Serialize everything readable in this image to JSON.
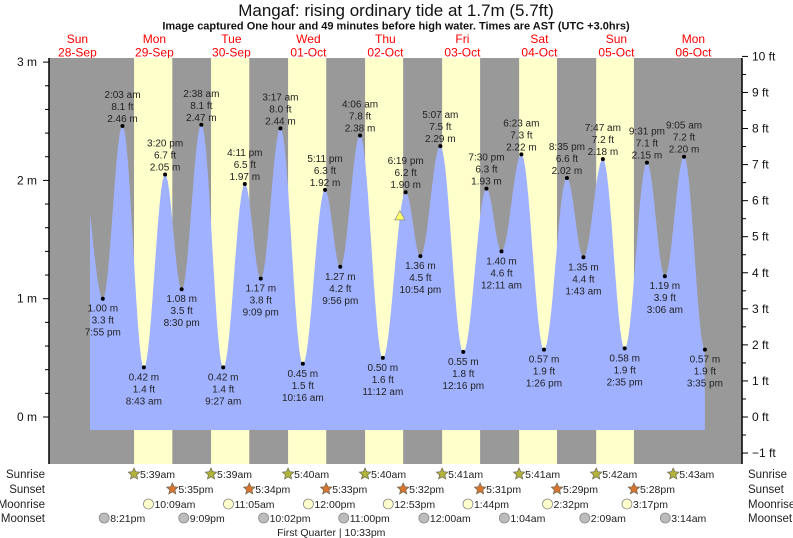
{
  "title": "Mangaf: rising  ordinary tide at 1.7m (5.7ft)",
  "subtitle": "Image captured One hour and 49 minutes before high water. Times are AST (UTC +3.0hrs)",
  "current": {
    "height_m": 1.7,
    "date": "02-Oct",
    "time": "4:30 pm"
  },
  "colors": {
    "night": "#999999",
    "day": "#ffffcc",
    "water": "#a0b2ff",
    "day_label": "#ff0000",
    "sunrise": "#b3b33c",
    "sunset": "#d8752e",
    "moonrise": "#ffffcc",
    "moonset": "#bcbcbc",
    "marker": "#ffff66"
  },
  "chart_data": {
    "type": "area",
    "title": "Mangaf: rising  ordinary tide at 1.7m (5.7ft)",
    "ylim_m": [
      -0.11,
      3.05
    ],
    "ylim_ft": [
      -1,
      10
    ],
    "left_ticks": [
      "3 m",
      "2 m",
      "1 m",
      "0 m"
    ],
    "left_tick_values": [
      3,
      2,
      1,
      0
    ],
    "right_ticks": [
      "10 ft",
      "9 ft",
      "8 ft",
      "7 ft",
      "6 ft",
      "5 ft",
      "4 ft",
      "3 ft",
      "2 ft",
      "1 ft",
      "0 ft",
      "−1 ft"
    ],
    "right_tick_values": [
      10,
      9,
      8,
      7,
      6,
      5,
      4,
      3,
      2,
      1,
      0,
      -1
    ]
  },
  "days": [
    {
      "dow": "Sun",
      "date": "28-Sep"
    },
    {
      "dow": "Mon",
      "date": "29-Sep"
    },
    {
      "dow": "Tue",
      "date": "30-Sep"
    },
    {
      "dow": "Wed",
      "date": "01-Oct"
    },
    {
      "dow": "Thu",
      "date": "02-Oct"
    },
    {
      "dow": "Fri",
      "date": "03-Oct"
    },
    {
      "dow": "Sat",
      "date": "04-Oct"
    },
    {
      "dow": "Sun",
      "date": "05-Oct"
    },
    {
      "dow": "Mon",
      "date": "06-Oct"
    }
  ],
  "tides": [
    {
      "type": "low",
      "date": "28-Sep",
      "time": "7:55 pm",
      "m": "1.00 m",
      "ft": "3.3 ft",
      "value": 1.0
    },
    {
      "type": "high",
      "date": "29-Sep",
      "time": "2:03 am",
      "m": "2.46 m",
      "ft": "8.1 ft",
      "value": 2.46
    },
    {
      "type": "low",
      "date": "29-Sep",
      "time": "8:43 am",
      "m": "0.42 m",
      "ft": "1.4 ft",
      "value": 0.42
    },
    {
      "type": "high",
      "date": "29-Sep",
      "time": "3:20 pm",
      "m": "2.05 m",
      "ft": "6.7 ft",
      "value": 2.05
    },
    {
      "type": "low",
      "date": "29-Sep",
      "time": "8:30 pm",
      "m": "1.08 m",
      "ft": "3.5 ft",
      "value": 1.08
    },
    {
      "type": "high",
      "date": "30-Sep",
      "time": "2:38 am",
      "m": "2.47 m",
      "ft": "8.1 ft",
      "value": 2.47
    },
    {
      "type": "low",
      "date": "30-Sep",
      "time": "9:27 am",
      "m": "0.42 m",
      "ft": "1.4 ft",
      "value": 0.42
    },
    {
      "type": "high",
      "date": "30-Sep",
      "time": "4:11 pm",
      "m": "1.97 m",
      "ft": "6.5 ft",
      "value": 1.97
    },
    {
      "type": "low",
      "date": "30-Sep",
      "time": "9:09 pm",
      "m": "1.17 m",
      "ft": "3.8 ft",
      "value": 1.17
    },
    {
      "type": "high",
      "date": "01-Oct",
      "time": "3:17 am",
      "m": "2.44 m",
      "ft": "8.0 ft",
      "value": 2.44
    },
    {
      "type": "low",
      "date": "01-Oct",
      "time": "10:16 am",
      "m": "0.45 m",
      "ft": "1.5 ft",
      "value": 0.45
    },
    {
      "type": "high",
      "date": "01-Oct",
      "time": "5:11 pm",
      "m": "1.92 m",
      "ft": "6.3 ft",
      "value": 1.92
    },
    {
      "type": "low",
      "date": "01-Oct",
      "time": "9:56 pm",
      "m": "1.27 m",
      "ft": "4.2 ft",
      "value": 1.27
    },
    {
      "type": "high",
      "date": "02-Oct",
      "time": "4:06 am",
      "m": "2.38 m",
      "ft": "7.8 ft",
      "value": 2.38
    },
    {
      "type": "low",
      "date": "02-Oct",
      "time": "11:12 am",
      "m": "0.50 m",
      "ft": "1.6 ft",
      "value": 0.5
    },
    {
      "type": "high",
      "date": "02-Oct",
      "time": "6:19 pm",
      "m": "1.90 m",
      "ft": "6.2 ft",
      "value": 1.9
    },
    {
      "type": "low",
      "date": "02-Oct",
      "time": "10:54 pm",
      "m": "1.36 m",
      "ft": "4.5 ft",
      "value": 1.36
    },
    {
      "type": "high",
      "date": "03-Oct",
      "time": "5:07 am",
      "m": "2.29 m",
      "ft": "7.5 ft",
      "value": 2.29
    },
    {
      "type": "low",
      "date": "03-Oct",
      "time": "12:16 pm",
      "m": "0.55 m",
      "ft": "1.8 ft",
      "value": 0.55
    },
    {
      "type": "high",
      "date": "03-Oct",
      "time": "7:30 pm",
      "m": "1.93 m",
      "ft": "6.3 ft",
      "value": 1.93
    },
    {
      "type": "low",
      "date": "04-Oct",
      "time": "12:11 am",
      "m": "1.40 m",
      "ft": "4.6 ft",
      "value": 1.4
    },
    {
      "type": "high",
      "date": "04-Oct",
      "time": "6:23 am",
      "m": "2.22 m",
      "ft": "7.3 ft",
      "value": 2.22
    },
    {
      "type": "low",
      "date": "04-Oct",
      "time": "1:26 pm",
      "m": "0.57 m",
      "ft": "1.9 ft",
      "value": 0.57
    },
    {
      "type": "high",
      "date": "04-Oct",
      "time": "8:35 pm",
      "m": "2.02 m",
      "ft": "6.6 ft",
      "value": 2.02
    },
    {
      "type": "low",
      "date": "05-Oct",
      "time": "1:43 am",
      "m": "1.35 m",
      "ft": "4.4 ft",
      "value": 1.35
    },
    {
      "type": "high",
      "date": "05-Oct",
      "time": "7:47 am",
      "m": "2.18 m",
      "ft": "7.2 ft",
      "value": 2.18
    },
    {
      "type": "low",
      "date": "05-Oct",
      "time": "2:35 pm",
      "m": "0.58 m",
      "ft": "1.9 ft",
      "value": 0.58
    },
    {
      "type": "high",
      "date": "05-Oct",
      "time": "9:31 pm",
      "m": "2.15 m",
      "ft": "7.1 ft",
      "value": 2.15
    },
    {
      "type": "low",
      "date": "06-Oct",
      "time": "3:06 am",
      "m": "1.19 m",
      "ft": "3.9 ft",
      "value": 1.19
    },
    {
      "type": "high",
      "date": "06-Oct",
      "time": "9:05 am",
      "m": "2.20 m",
      "ft": "7.2 ft",
      "value": 2.2
    },
    {
      "type": "low",
      "date": "06-Oct",
      "time": "3:35 pm",
      "m": "0.57 m",
      "ft": "1.9 ft",
      "value": 0.57
    }
  ],
  "rows": {
    "sunrise": {
      "label": "Sunrise",
      "events": [
        {
          "date": "29-Sep",
          "time": "5:39am"
        },
        {
          "date": "30-Sep",
          "time": "5:39am"
        },
        {
          "date": "01-Oct",
          "time": "5:40am"
        },
        {
          "date": "02-Oct",
          "time": "5:40am"
        },
        {
          "date": "03-Oct",
          "time": "5:41am"
        },
        {
          "date": "04-Oct",
          "time": "5:41am"
        },
        {
          "date": "05-Oct",
          "time": "5:42am"
        },
        {
          "date": "06-Oct",
          "time": "5:43am"
        }
      ]
    },
    "sunset": {
      "label": "Sunset",
      "events": [
        {
          "date": "29-Sep",
          "time": "5:35pm"
        },
        {
          "date": "30-Sep",
          "time": "5:34pm"
        },
        {
          "date": "01-Oct",
          "time": "5:33pm"
        },
        {
          "date": "02-Oct",
          "time": "5:32pm"
        },
        {
          "date": "03-Oct",
          "time": "5:31pm"
        },
        {
          "date": "04-Oct",
          "time": "5:29pm"
        },
        {
          "date": "05-Oct",
          "time": "5:28pm"
        }
      ]
    },
    "moonrise": {
      "label": "Moonrise",
      "events": [
        {
          "date": "29-Sep",
          "time": "10:09am"
        },
        {
          "date": "30-Sep",
          "time": "11:05am"
        },
        {
          "date": "01-Oct",
          "time": "12:00pm"
        },
        {
          "date": "02-Oct",
          "time": "12:53pm"
        },
        {
          "date": "03-Oct",
          "time": "1:44pm"
        },
        {
          "date": "04-Oct",
          "time": "2:32pm"
        },
        {
          "date": "05-Oct",
          "time": "3:17pm"
        }
      ]
    },
    "moonset": {
      "label": "Moonset",
      "events": [
        {
          "date": "28-Sep",
          "time": "8:21pm"
        },
        {
          "date": "29-Sep",
          "time": "9:09pm"
        },
        {
          "date": "30-Sep",
          "time": "10:02pm"
        },
        {
          "date": "01-Oct",
          "time": "11:00pm"
        },
        {
          "date": "03-Oct",
          "time": "12:00am"
        },
        {
          "date": "04-Oct",
          "time": "1:04am"
        },
        {
          "date": "05-Oct",
          "time": "2:09am"
        },
        {
          "date": "06-Oct",
          "time": "3:14am"
        }
      ]
    }
  },
  "moon_phase": {
    "text": "First Quarter | 10:33pm",
    "date": "01-Oct",
    "time": "10:33pm"
  }
}
